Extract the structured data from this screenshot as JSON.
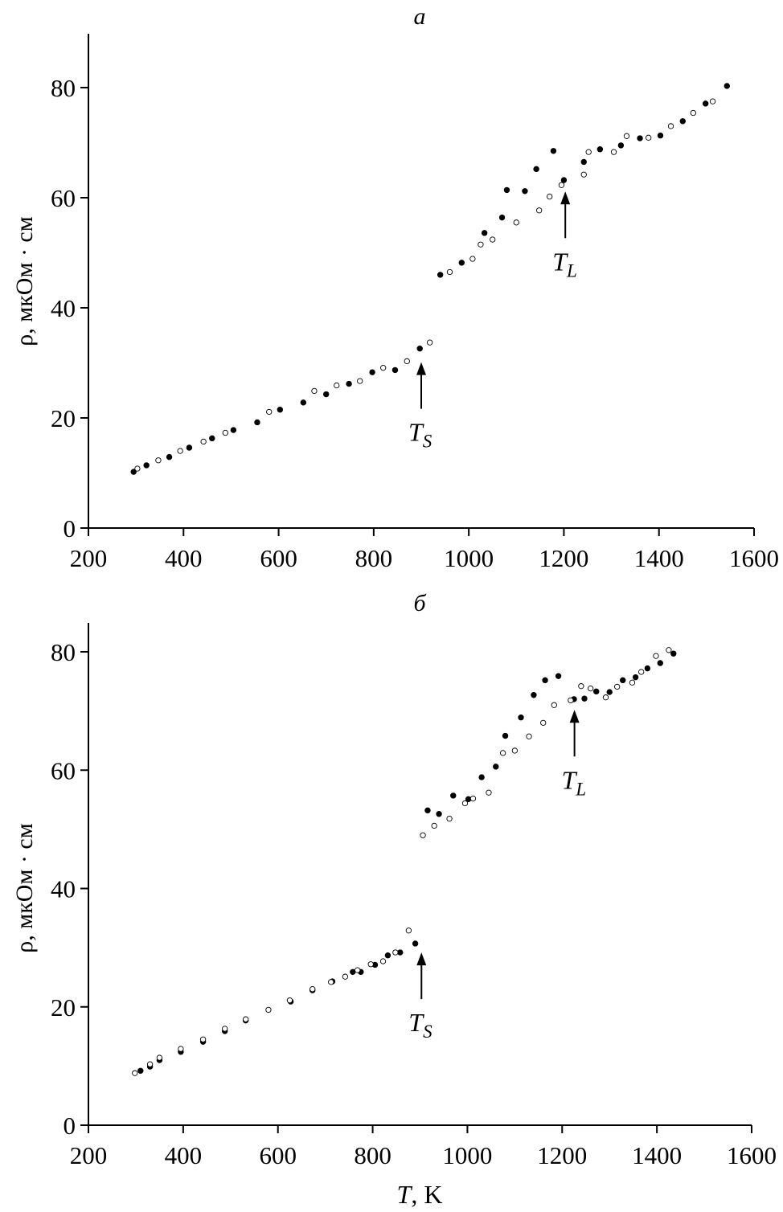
{
  "chart_data": [
    {
      "type": "scatter",
      "panel_label": "а",
      "ylabel": "ρ, мкОм · см",
      "xlabel": "",
      "xlim": [
        200,
        1600
      ],
      "ylim": [
        0,
        90
      ],
      "xticks": [
        200,
        400,
        600,
        800,
        1000,
        1200,
        1400,
        1600
      ],
      "yticks": [
        0,
        20,
        40,
        60,
        80
      ],
      "annotations": [
        {
          "text": "T",
          "sub": "S",
          "x": 900,
          "y": 31
        },
        {
          "text": "T",
          "sub": "L",
          "x": 1203,
          "y": 62
        }
      ],
      "series": [
        {
          "marker": "filled",
          "x": [
            295,
            322,
            370,
            412,
            460,
            505,
            555,
            603,
            652,
            700,
            748,
            797,
            845,
            897,
            940,
            985,
            1033,
            1070,
            1080,
            1118,
            1142,
            1178,
            1200,
            1242,
            1276,
            1320,
            1360,
            1403,
            1450,
            1498,
            1543
          ],
          "y": [
            10.2,
            11.4,
            12.9,
            14.6,
            16.3,
            17.8,
            19.2,
            21.5,
            22.8,
            24.3,
            26.2,
            28.3,
            28.7,
            32.6,
            46.0,
            48.2,
            53.6,
            56.4,
            61.4,
            61.2,
            65.2,
            68.5,
            63.2,
            66.5,
            68.8,
            69.5,
            70.8,
            71.3,
            73.9,
            77.1,
            80.3
          ]
        },
        {
          "marker": "open",
          "x": [
            303,
            347,
            393,
            442,
            488,
            580,
            675,
            722,
            771,
            820,
            870,
            918,
            960,
            1008,
            1025,
            1050,
            1100,
            1148,
            1170,
            1195,
            1242,
            1252,
            1305,
            1332,
            1378,
            1425,
            1472,
            1513
          ],
          "y": [
            10.8,
            12.3,
            14.0,
            15.7,
            17.3,
            21.1,
            24.9,
            25.9,
            26.7,
            29.1,
            30.3,
            33.7,
            46.5,
            48.9,
            51.5,
            52.4,
            55.5,
            57.7,
            60.2,
            62.3,
            64.2,
            68.3,
            68.3,
            71.2,
            70.9,
            73.0,
            75.4,
            77.5
          ]
        }
      ]
    },
    {
      "type": "scatter",
      "panel_label": "б",
      "ylabel": "ρ, мкОм · см",
      "xlabel": "T, K",
      "xlim": [
        200,
        1600
      ],
      "ylim": [
        0,
        85
      ],
      "xticks": [
        200,
        400,
        600,
        800,
        1000,
        1200,
        1400,
        1600
      ],
      "yticks": [
        0,
        20,
        40,
        60,
        80
      ],
      "annotations": [
        {
          "text": "T",
          "sub": "S",
          "x": 903,
          "y": 30
        },
        {
          "text": "T",
          "sub": "L",
          "x": 1226,
          "y": 71
        }
      ],
      "series": [
        {
          "marker": "filled",
          "x": [
            310,
            330,
            350,
            395,
            442,
            488,
            532,
            627,
            673,
            715,
            758,
            775,
            805,
            832,
            858,
            890,
            916,
            940,
            970,
            1002,
            1030,
            1060,
            1080,
            1113,
            1140,
            1164,
            1192,
            1225,
            1247,
            1272,
            1300,
            1328,
            1355,
            1380,
            1407,
            1435
          ],
          "y": [
            9.2,
            9.9,
            11.0,
            12.4,
            14.1,
            15.9,
            17.7,
            20.9,
            22.8,
            24.3,
            25.9,
            25.9,
            27.1,
            28.7,
            29.2,
            30.7,
            53.2,
            52.6,
            55.7,
            55.1,
            58.8,
            60.6,
            65.8,
            68.9,
            72.7,
            75.2,
            75.9,
            72.0,
            72.1,
            73.3,
            73.2,
            75.2,
            75.7,
            77.2,
            78.1,
            79.7
          ]
        },
        {
          "marker": "open",
          "x": [
            298,
            330,
            350,
            395,
            442,
            488,
            532,
            580,
            625,
            673,
            712,
            742,
            768,
            796,
            822,
            848,
            876,
            906,
            930,
            962,
            995,
            1012,
            1045,
            1075,
            1100,
            1130,
            1160,
            1183,
            1218,
            1240,
            1260,
            1292,
            1316,
            1348,
            1367,
            1398,
            1425
          ],
          "y": [
            8.8,
            10.3,
            11.4,
            12.9,
            14.5,
            16.3,
            17.9,
            19.5,
            21.1,
            23.0,
            24.2,
            25.1,
            26.2,
            27.2,
            27.7,
            29.2,
            32.9,
            49.0,
            50.6,
            51.8,
            54.4,
            55.2,
            56.2,
            62.9,
            63.3,
            65.7,
            68.0,
            71.0,
            71.8,
            74.2,
            73.8,
            72.3,
            74.1,
            74.8,
            76.6,
            79.3,
            80.3
          ]
        }
      ]
    }
  ]
}
